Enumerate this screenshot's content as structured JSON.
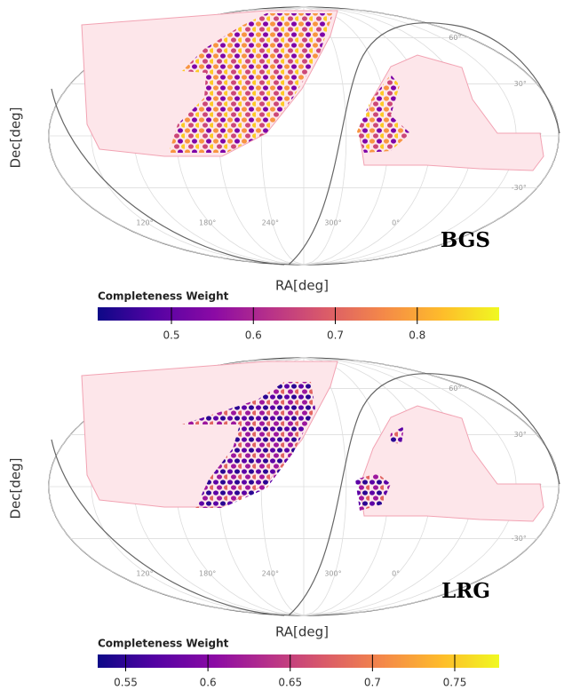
{
  "chart_data": [
    {
      "type": "map",
      "label": "BGS",
      "xlabel": "RA[deg]",
      "ylabel": "Dec[deg]",
      "xticks": [
        {
          "value": 120,
          "label": "120°"
        },
        {
          "value": 180,
          "label": "180°"
        },
        {
          "value": 240,
          "label": "240°"
        },
        {
          "value": 300,
          "label": "300°"
        },
        {
          "value": 0,
          "label": "0°"
        }
      ],
      "yticks": [
        {
          "value": 60,
          "label": "60°"
        },
        {
          "value": 30,
          "label": "30°"
        },
        {
          "value": 0,
          "label": "0°"
        },
        {
          "value": -30,
          "label": "-30°"
        }
      ],
      "colorbar": {
        "label": "Completeness Weight",
        "lim": [
          0.41,
          0.9
        ],
        "ticks": [
          0.5,
          0.6,
          0.7,
          0.8
        ]
      }
    },
    {
      "type": "map",
      "label": "LRG",
      "xlabel": "RA[deg]",
      "ylabel": "Dec[deg]",
      "xticks": [
        {
          "value": 120,
          "label": "120°"
        },
        {
          "value": 180,
          "label": "180°"
        },
        {
          "value": 240,
          "label": "240°"
        },
        {
          "value": 300,
          "label": "300°"
        },
        {
          "value": 0,
          "label": "0°"
        }
      ],
      "yticks": [
        {
          "value": 60,
          "label": "60°"
        },
        {
          "value": 30,
          "label": "30°"
        },
        {
          "value": 0,
          "label": "0°"
        },
        {
          "value": -30,
          "label": "-30°"
        }
      ],
      "colorbar": {
        "label": "Completeness Weight",
        "lim": [
          0.533,
          0.777
        ],
        "ticks": [
          0.55,
          0.6,
          0.65,
          0.7,
          0.75
        ]
      }
    }
  ]
}
